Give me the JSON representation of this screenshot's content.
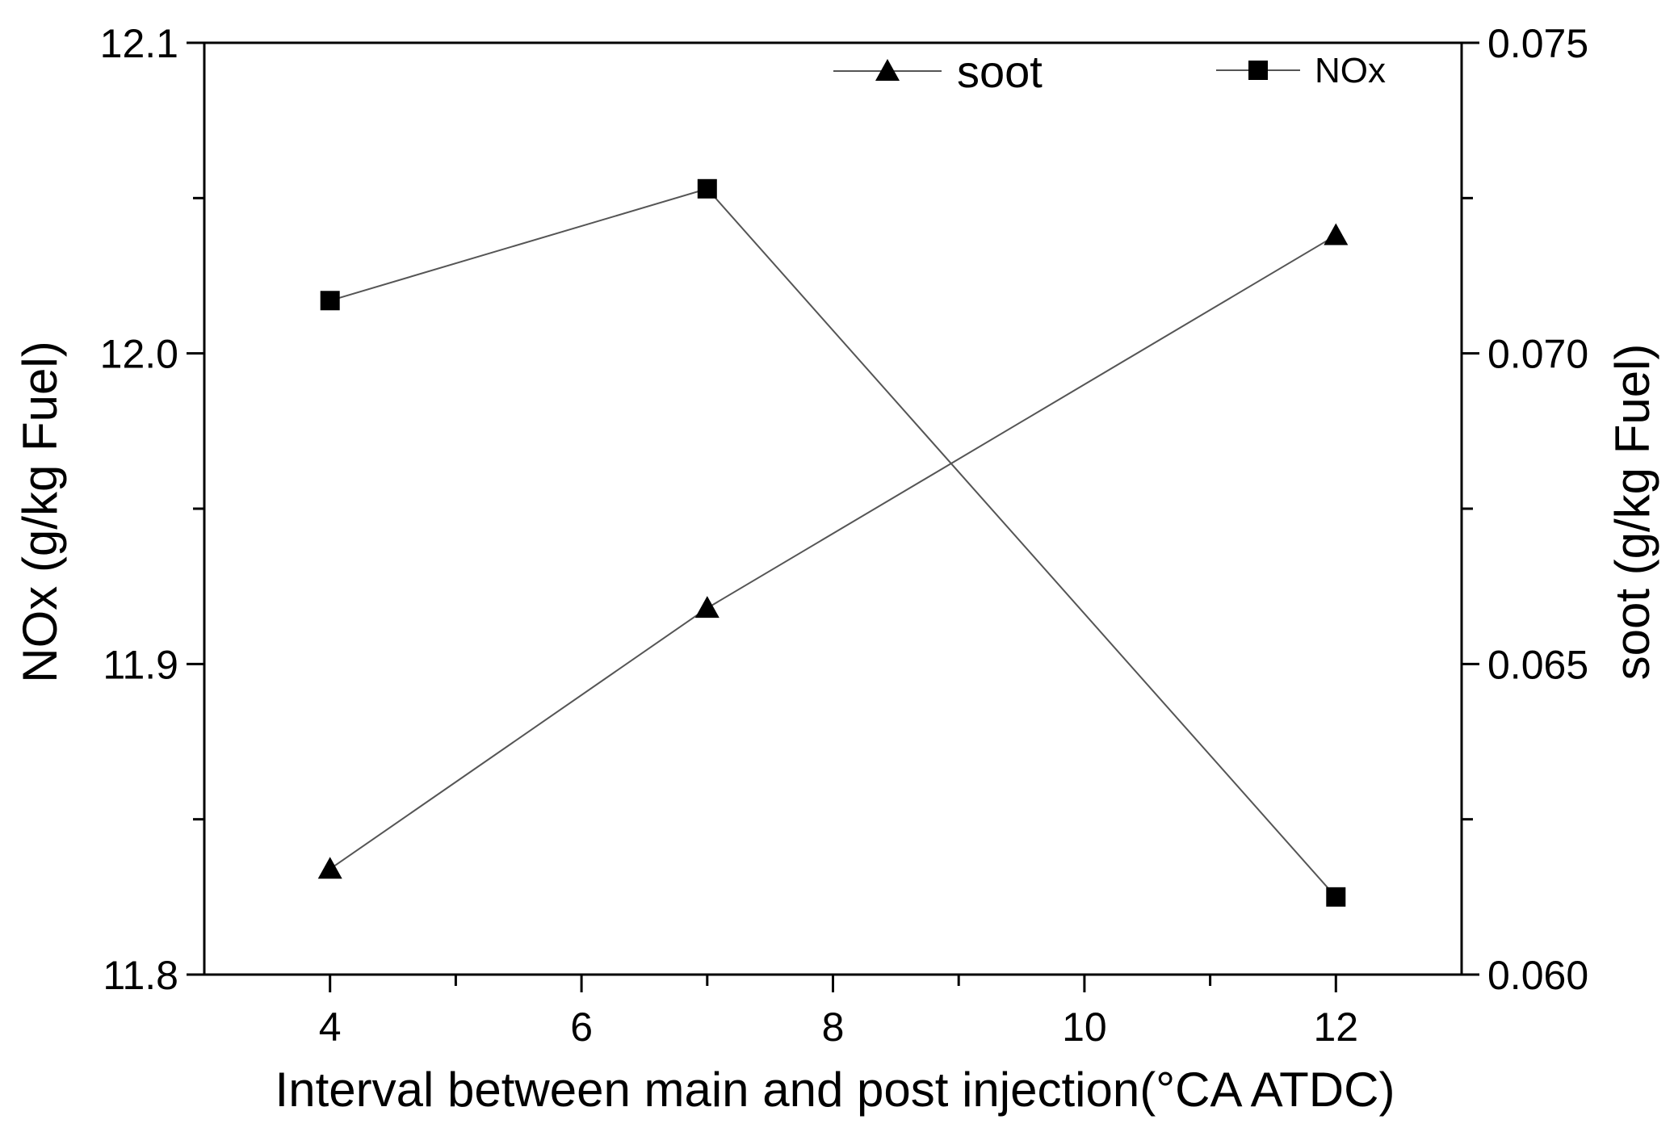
{
  "chart_data": {
    "type": "line",
    "x": [
      4,
      7,
      12
    ],
    "xlabel": "Interval between main and post injection(°CA ATDC)",
    "xlim": [
      3,
      13
    ],
    "xticks": [
      4,
      6,
      8,
      10,
      12
    ],
    "xtick_labels": [
      "4",
      "6",
      "8",
      "10",
      "12"
    ],
    "ylabel_left": "NOx (g/kg Fuel)",
    "ylim_left": [
      11.8,
      12.1
    ],
    "yticks_left": [
      11.8,
      11.9,
      12.0,
      12.1
    ],
    "ytick_labels_left": [
      "11.8",
      "11.9",
      "12.0",
      "12.1"
    ],
    "ylabel_right": "soot (g/kg Fuel)",
    "ylim_right": [
      0.06,
      0.075
    ],
    "yticks_right": [
      0.06,
      0.065,
      0.07,
      0.075
    ],
    "ytick_labels_right": [
      "0.060",
      "0.065",
      "0.070",
      "0.075"
    ],
    "series": [
      {
        "name": "NOx",
        "axis": "left",
        "marker": "square",
        "values": [
          12.017,
          12.053,
          11.825
        ]
      },
      {
        "name": "soot",
        "axis": "right",
        "marker": "triangle",
        "values": [
          0.0617,
          0.0659,
          0.0719
        ]
      }
    ],
    "legend": [
      {
        "label": "soot",
        "marker": "triangle"
      },
      {
        "label": "NOx",
        "marker": "square"
      }
    ],
    "legend_position": "top-right",
    "grid": false
  }
}
